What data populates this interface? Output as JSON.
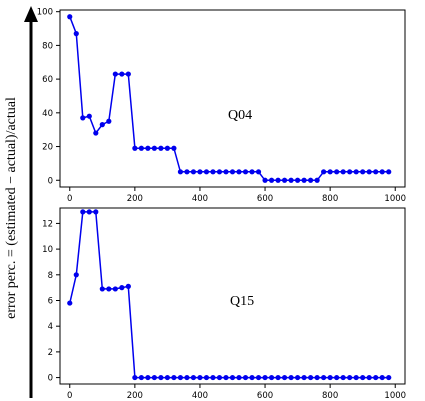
{
  "ylabel": "error perc. = (estimated − actual)/actual",
  "colors": {
    "series": "#0000ee",
    "axis_arrow": "#000000",
    "frame": "#000000"
  },
  "chart_data": [
    {
      "type": "line",
      "annotation": "Q04",
      "xlim": [
        -30,
        1030
      ],
      "ylim": [
        -4,
        101
      ],
      "xticks": [
        0,
        200,
        400,
        600,
        800,
        1000
      ],
      "yticks": [
        0,
        20,
        40,
        60,
        80,
        100
      ],
      "x": [
        0,
        20,
        40,
        60,
        80,
        100,
        120,
        140,
        160,
        180,
        200,
        220,
        240,
        260,
        280,
        300,
        320,
        340,
        360,
        380,
        400,
        420,
        440,
        460,
        480,
        500,
        520,
        540,
        560,
        580,
        600,
        620,
        640,
        660,
        680,
        700,
        720,
        740,
        760,
        780,
        800,
        820,
        840,
        860,
        880,
        900,
        920,
        940,
        960,
        980
      ],
      "y": [
        97,
        87,
        37,
        38,
        28,
        33,
        35,
        63,
        63,
        63,
        19,
        19,
        19,
        19,
        19,
        19,
        19,
        5,
        5,
        5,
        5,
        5,
        5,
        5,
        5,
        5,
        5,
        5,
        5,
        5,
        0,
        0,
        0,
        0,
        0,
        0,
        0,
        0,
        0,
        5,
        5,
        5,
        5,
        5,
        5,
        5,
        5,
        5,
        5,
        5
      ]
    },
    {
      "type": "line",
      "annotation": "Q15",
      "xlim": [
        -30,
        1030
      ],
      "ylim": [
        -0.5,
        13.2
      ],
      "xticks": [
        0,
        200,
        400,
        600,
        800,
        1000
      ],
      "yticks": [
        0,
        2,
        4,
        6,
        8,
        10,
        12
      ],
      "x": [
        0,
        20,
        40,
        60,
        80,
        100,
        120,
        140,
        160,
        180,
        200,
        220,
        240,
        260,
        280,
        300,
        320,
        340,
        360,
        380,
        400,
        420,
        440,
        460,
        480,
        500,
        520,
        540,
        560,
        580,
        600,
        620,
        640,
        660,
        680,
        700,
        720,
        740,
        760,
        780,
        800,
        820,
        840,
        860,
        880,
        900,
        920,
        940,
        960,
        980
      ],
      "y": [
        5.8,
        8.0,
        12.9,
        12.9,
        12.9,
        6.9,
        6.9,
        6.9,
        7.0,
        7.1,
        0,
        0,
        0,
        0,
        0,
        0,
        0,
        0,
        0,
        0,
        0,
        0,
        0,
        0,
        0,
        0,
        0,
        0,
        0,
        0,
        0,
        0,
        0,
        0,
        0,
        0,
        0,
        0,
        0,
        0,
        0,
        0,
        0,
        0,
        0,
        0,
        0,
        0,
        0,
        0
      ]
    }
  ]
}
